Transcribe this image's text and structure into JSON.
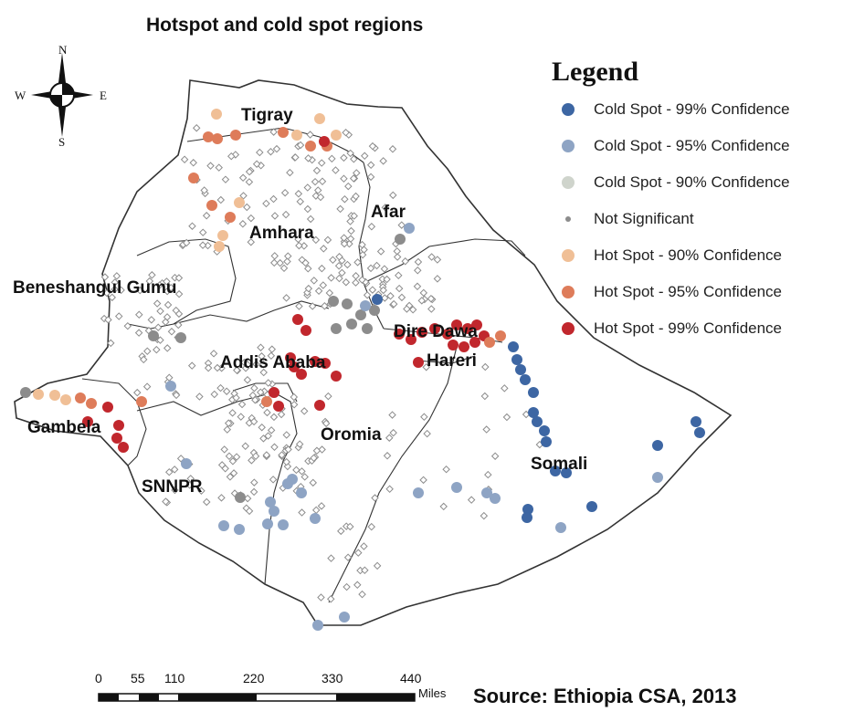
{
  "title": "Hotspot and cold spot regions",
  "legend": {
    "title": "Legend",
    "items": [
      {
        "label": "Cold Spot - 99% Confidence",
        "color": "#3d66a3",
        "kind": "dot"
      },
      {
        "label": "Cold Spot - 95% Confidence",
        "color": "#8ea4c4",
        "kind": "dot"
      },
      {
        "label": "Cold Spot - 90% Confidence",
        "color": "#cfd4cc",
        "kind": "dot"
      },
      {
        "label": "Not Significant",
        "color": "#8c8c8c",
        "kind": "small"
      },
      {
        "label": "Hot Spot - 90% Confidence",
        "color": "#f0bf96",
        "kind": "dot"
      },
      {
        "label": "Hot Spot - 95% Confidence",
        "color": "#de7c5a",
        "kind": "dot"
      },
      {
        "label": "Hot Spot - 99% Confidence",
        "color": "#c1272d",
        "kind": "dot"
      }
    ]
  },
  "regions": [
    "Tigray",
    "Afar",
    "Amhara",
    "Beneshangul Gumu",
    "Dire Dawa",
    "Addis Ababa",
    "Hareri",
    "Gambela",
    "Oromia",
    "Somali",
    "SNNPR"
  ],
  "compass": {
    "n": "N",
    "s": "S",
    "e": "E",
    "w": "W"
  },
  "scale": {
    "ticks": [
      "0",
      "55",
      "110",
      "220",
      "330",
      "440"
    ],
    "unit": "Miles"
  },
  "source": "Source: Ethiopia CSA, 2013"
}
